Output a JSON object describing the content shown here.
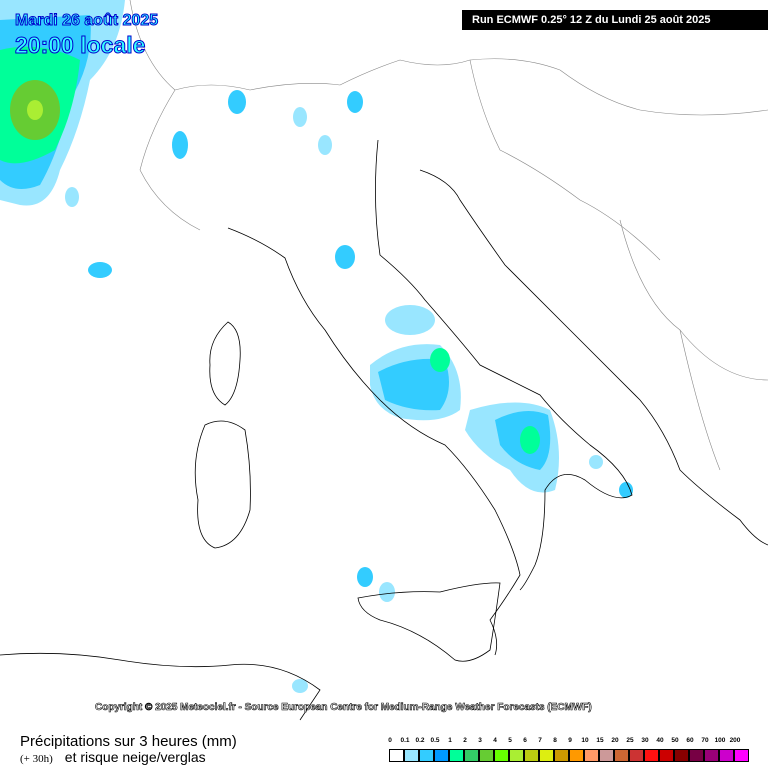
{
  "header": {
    "date": "Mardi 26 août 2025",
    "time": "20:00 locale",
    "run": "Run ECMWF 0.25° 12 Z du Lundi 25 août 2025"
  },
  "copyright": "Copyright © 2025 Meteociel.fr - Source European Centre for Medium-Range Weather Forecasts (ECMWF)",
  "footer": {
    "title": "Précipitations sur 3 heures (mm)",
    "lead": "(+ 30h)",
    "subtitle": "et risque neige/verglas"
  },
  "legend": {
    "labels": [
      "0",
      "0.1",
      "0.2",
      "0.5",
      "1",
      "2",
      "3",
      "4",
      "5",
      "6",
      "7",
      "8",
      "9",
      "10",
      "15",
      "20",
      "25",
      "30",
      "40",
      "50",
      "60",
      "70",
      "100",
      "200"
    ],
    "colors": [
      "#ffffff",
      "#99e6ff",
      "#33ccff",
      "#0099ff",
      "#00ff99",
      "#33cc66",
      "#66cc33",
      "#66ff00",
      "#aaee33",
      "#bbcc11",
      "#ddee11",
      "#cc9900",
      "#ff9900",
      "#ff9966",
      "#cc9999",
      "#cc6633",
      "#cc3333",
      "#ff1111",
      "#cc0000",
      "#880000",
      "#770044",
      "#990077",
      "#cc00cc",
      "#ff00ff"
    ]
  }
}
